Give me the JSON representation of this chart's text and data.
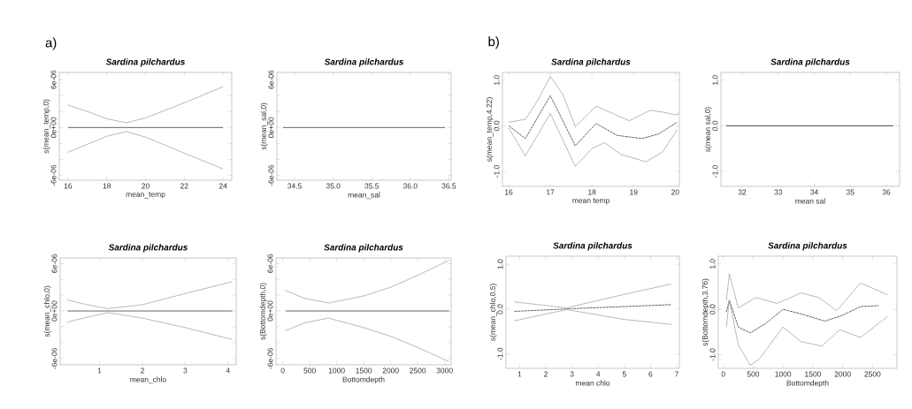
{
  "chart_data": [
    {
      "type": "line",
      "title": "Sardina pilchardus",
      "xlabel": "mean_temp",
      "ylabel": "s(mean_temp,0)",
      "annotations": [
        "a)"
      ],
      "xlim": [
        15.55,
        24.45
      ],
      "ylim": [
        -6.6e-06,
        6.9e-06
      ],
      "xticks": [
        16,
        18,
        20,
        22,
        24
      ],
      "yticks": [
        {
          "value": -6e-06,
          "label": "-6e-06"
        },
        {
          "value": -4e-06,
          "label": null
        },
        {
          "value": -2e-06,
          "label": null
        },
        {
          "value": 0,
          "label": "0e+00"
        },
        {
          "value": 2e-06,
          "label": null
        },
        {
          "value": 4e-06,
          "label": null
        },
        {
          "value": 6e-06,
          "label": "6e-06"
        }
      ],
      "series": [
        {
          "color": "#555555",
          "line_style": "solid",
          "x": [
            16,
            24
          ],
          "values": [
            0,
            0
          ]
        },
        {
          "color": "#999999",
          "line_style": "dotted",
          "x": [
            16,
            17,
            18,
            19,
            20,
            22,
            24
          ],
          "values": [
            2.8e-06,
            2e-06,
            1.1e-06,
            6e-07,
            1.2e-06,
            3.1e-06,
            5.1e-06
          ]
        },
        {
          "color": "#999999",
          "line_style": "dotted",
          "x": [
            16,
            17,
            18,
            19,
            20,
            22,
            24
          ],
          "values": [
            -3.1e-06,
            -2.1e-06,
            -1.1e-06,
            -5e-07,
            -1.2e-06,
            -3.2e-06,
            -5.2e-06
          ]
        }
      ]
    },
    {
      "type": "line",
      "title": "Sardina pilchardus",
      "xlabel": "mean_sal",
      "ylabel": "s(mean_sal,0)",
      "xlim": [
        34.27,
        36.53
      ],
      "ylim": [
        -6.6e-06,
        6.9e-06
      ],
      "xticks": [
        {
          "value": 34.5,
          "label": "34.5"
        },
        {
          "value": 35,
          "label": "35.0"
        },
        {
          "value": 35.5,
          "label": "35.5"
        },
        {
          "value": 36,
          "label": "36.0"
        },
        {
          "value": 36.5,
          "label": "36.5"
        }
      ],
      "yticks": [
        {
          "value": -6e-06,
          "label": "-6e-06"
        },
        {
          "value": -4e-06,
          "label": null
        },
        {
          "value": -2e-06,
          "label": null
        },
        {
          "value": 0,
          "label": "0e+00"
        },
        {
          "value": 2e-06,
          "label": null
        },
        {
          "value": 4e-06,
          "label": null
        },
        {
          "value": 6e-06,
          "label": "6e-06"
        }
      ],
      "series": [
        {
          "color": "#555555",
          "line_style": "solid",
          "x": [
            34.35,
            36.45
          ],
          "values": [
            0,
            0
          ]
        }
      ]
    },
    {
      "type": "line",
      "title": "Sardina pilchardus",
      "xlabel": "mean_chlo",
      "ylabel": "s(mean_chlo,0)",
      "xlim": [
        0.08,
        4.19
      ],
      "ylim": [
        -6.8e-06,
        6.7e-06
      ],
      "xticks": [
        1,
        2,
        3,
        4
      ],
      "yticks": [
        {
          "value": -6e-06,
          "label": "-6e-06"
        },
        {
          "value": -4e-06,
          "label": null
        },
        {
          "value": -2e-06,
          "label": null
        },
        {
          "value": 0,
          "label": "0e+00"
        },
        {
          "value": 2e-06,
          "label": null
        },
        {
          "value": 4e-06,
          "label": null
        },
        {
          "value": 6e-06,
          "label": "6e-06"
        }
      ],
      "series": [
        {
          "color": "#555555",
          "line_style": "solid",
          "x": [
            0.25,
            4.1
          ],
          "values": [
            0,
            0
          ]
        },
        {
          "color": "#999999",
          "line_style": "dotted",
          "x": [
            0.25,
            0.7,
            1.2,
            2,
            3,
            4.1
          ],
          "values": [
            1.4e-06,
            8e-07,
            3e-07,
            8e-07,
            2.2e-06,
            3.7e-06
          ]
        },
        {
          "color": "#999999",
          "line_style": "dotted",
          "x": [
            0.25,
            0.7,
            1.2,
            2,
            3,
            4.1
          ],
          "values": [
            -1.4e-06,
            -8e-07,
            -2e-07,
            -9e-07,
            -2.1e-06,
            -3.6e-06
          ]
        }
      ]
    },
    {
      "type": "line",
      "title": "Sardina pilchardus",
      "xlabel": "Bottomdepth",
      "ylabel": "s(Bottomdepth,0)",
      "xlim": [
        -125,
        3120
      ],
      "ylim": [
        -6.8e-06,
        6.7e-06
      ],
      "xticks": [
        0,
        500,
        1000,
        1500,
        2000,
        2500,
        3000
      ],
      "yticks": [
        {
          "value": -6e-06,
          "label": "-6e-06"
        },
        {
          "value": -4e-06,
          "label": null
        },
        {
          "value": -2e-06,
          "label": null
        },
        {
          "value": 0,
          "label": "0e+00"
        },
        {
          "value": 2e-06,
          "label": null
        },
        {
          "value": 4e-06,
          "label": null
        },
        {
          "value": 6e-06,
          "label": "6e-06"
        }
      ],
      "series": [
        {
          "color": "#555555",
          "line_style": "solid",
          "x": [
            50,
            3080
          ],
          "values": [
            0,
            0
          ]
        },
        {
          "color": "#999999",
          "line_style": "dotted",
          "x": [
            50,
            400,
            850,
            1500,
            2000,
            2500,
            3080
          ],
          "values": [
            2.6e-06,
            1.6e-06,
            1e-06,
            1.9e-06,
            3e-06,
            4.5e-06,
            6.4e-06
          ]
        },
        {
          "color": "#999999",
          "line_style": "dotted",
          "x": [
            50,
            400,
            850,
            1500,
            2000,
            2500,
            3080
          ],
          "values": [
            -2.5e-06,
            -1.5e-06,
            -9e-07,
            -2.1e-06,
            -3.2e-06,
            -4.6e-06,
            -6.4e-06
          ]
        }
      ]
    },
    {
      "type": "line",
      "title": "Sardina pilchardus",
      "xlabel": "mean temp",
      "ylabel": "s(mean_temp,4.22)",
      "annotations": [
        "b)"
      ],
      "xlim": [
        15.85,
        20.1
      ],
      "ylim": [
        -1.33,
        1.17
      ],
      "xticks": [
        16,
        17,
        18,
        19,
        20
      ],
      "yticks": [
        {
          "value": -1,
          "label": "-1.0"
        },
        {
          "value": 0,
          "label": "0.0"
        },
        {
          "value": 1,
          "label": "1.0"
        }
      ],
      "series": [
        {
          "color": "#555555",
          "line_style": "dashed",
          "x": [
            16,
            16.4,
            17.0,
            17.6,
            18.1,
            18.6,
            19.2,
            19.6,
            20.05
          ],
          "values": [
            0.0,
            -0.28,
            0.66,
            -0.44,
            0.05,
            -0.21,
            -0.28,
            -0.18,
            0.08
          ]
        },
        {
          "color": "#999999",
          "line_style": "dotted",
          "x": [
            16,
            16.4,
            16.7,
            17.0,
            17.3,
            17.6,
            18.1,
            18.5,
            18.9,
            19.4,
            19.7,
            20.0,
            20.1
          ],
          "values": [
            0.08,
            0.14,
            0.56,
            1.08,
            0.69,
            -0.02,
            0.43,
            0.27,
            0.11,
            0.34,
            0.3,
            0.24,
            0.27
          ]
        },
        {
          "color": "#999999",
          "line_style": "dotted",
          "x": [
            16,
            16.4,
            17.0,
            17.6,
            18.0,
            18.3,
            18.7,
            19.3,
            19.7,
            20.05
          ],
          "values": [
            -0.05,
            -0.66,
            0.27,
            -0.89,
            -0.5,
            -0.37,
            -0.63,
            -0.79,
            -0.57,
            -0.08
          ]
        }
      ]
    },
    {
      "type": "line",
      "title": "Sardina pilchardus",
      "xlabel": "mean sal",
      "ylabel": "s(mean sal,0)",
      "xlim": [
        31.41,
        36.37
      ],
      "ylim": [
        -1.33,
        1.17
      ],
      "xticks": [
        32,
        33,
        34,
        35,
        36
      ],
      "yticks": [
        {
          "value": -1,
          "label": "-1.0"
        },
        {
          "value": 0,
          "label": "0.0"
        },
        {
          "value": 1,
          "label": "1.0"
        }
      ],
      "series": [
        {
          "color": "#333333",
          "line_style": "solid",
          "x": [
            31.55,
            36.2
          ],
          "values": [
            0,
            0
          ]
        }
      ]
    },
    {
      "type": "line",
      "title": "Sardina pilchardus",
      "xlabel": "mean chlo",
      "ylabel": "s(mean_chlo,0.5)",
      "xlim": [
        0.48,
        7.1
      ],
      "ylim": [
        -1.32,
        1.18
      ],
      "xticks": [
        1,
        2,
        3,
        4,
        5,
        6,
        7
      ],
      "yticks": [
        {
          "value": -1,
          "label": "-1.0"
        },
        {
          "value": 0,
          "label": "0.0"
        },
        {
          "value": 1,
          "label": "1.0"
        }
      ],
      "series": [
        {
          "color": "#555555",
          "line_style": "dashed",
          "x": [
            0.8,
            3,
            6.8
          ],
          "values": [
            -0.05,
            0.01,
            0.1
          ]
        },
        {
          "color": "#999999",
          "line_style": "dotted",
          "x": [
            0.8,
            2.8,
            5,
            6.8
          ],
          "values": [
            0.16,
            0.03,
            0.33,
            0.56
          ]
        },
        {
          "color": "#999999",
          "line_style": "dotted",
          "x": [
            0.8,
            2.8,
            5,
            6.8
          ],
          "values": [
            -0.26,
            -0.01,
            -0.23,
            -0.34
          ]
        }
      ]
    },
    {
      "type": "line",
      "title": "Sardina pilchardus",
      "xlabel": "Bottomdepth",
      "ylabel": "s(Bottomdepth,3.76)",
      "xlim": [
        -85,
        2910
      ],
      "ylim": [
        -1.3,
        1.17
      ],
      "xticks": [
        0,
        500,
        1000,
        1500,
        2000,
        2500
      ],
      "yticks": [
        {
          "value": -1,
          "label": "-1.0"
        },
        {
          "value": 0,
          "label": "0.0"
        },
        {
          "value": 1,
          "label": "1.0"
        }
      ],
      "series": [
        {
          "color": "#555555",
          "line_style": "dashed",
          "x": [
            50,
            100,
            250,
            450,
            700,
            1000,
            1300,
            1700,
            2000,
            2300,
            2600
          ],
          "values": [
            -0.06,
            0.2,
            -0.39,
            -0.52,
            -0.32,
            0.0,
            -0.1,
            -0.26,
            -0.13,
            0.06,
            0.08
          ]
        },
        {
          "color": "#999999",
          "line_style": "dotted",
          "x": [
            50,
            100,
            250,
            550,
            900,
            1300,
            1600,
            1900,
            2300,
            2750
          ],
          "values": [
            0.2,
            0.78,
            0.03,
            0.26,
            0.13,
            0.36,
            0.26,
            -0.03,
            0.58,
            0.32
          ]
        },
        {
          "color": "#999999",
          "line_style": "dotted",
          "x": [
            50,
            100,
            250,
            450,
            600,
            1000,
            1300,
            1650,
            1950,
            2300,
            2750
          ],
          "values": [
            -0.39,
            0.2,
            -0.78,
            -1.23,
            -1.1,
            -0.39,
            -0.71,
            -0.81,
            -0.45,
            -0.62,
            -0.16
          ]
        }
      ]
    }
  ]
}
